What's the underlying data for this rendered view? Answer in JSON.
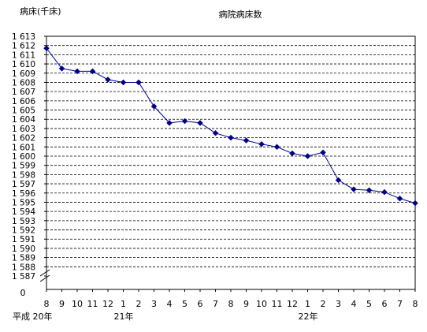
{
  "chart_data": {
    "type": "line",
    "title": "病院病床数",
    "ylabel": "病床(千床)",
    "xlabel": "",
    "ylim": [
      1587,
      1613
    ],
    "y_ticks": [
      "1 587",
      "1 588",
      "1 589",
      "1 590",
      "1 591",
      "1 592",
      "1 593",
      "1 594",
      "1 595",
      "1 596",
      "1 597",
      "1 598",
      "1 599",
      "1 600",
      "1 601",
      "1 602",
      "1 603",
      "1 604",
      "1 605",
      "1 606",
      "1 607",
      "1 608",
      "1 609",
      "1 610",
      "1 611",
      "1 612",
      "1 613"
    ],
    "y_zero_label": "0",
    "axis_break": true,
    "grid": true,
    "categories": [
      "8",
      "9",
      "10",
      "11",
      "12",
      "1",
      "2",
      "3",
      "4",
      "5",
      "6",
      "7",
      "8",
      "9",
      "10",
      "11",
      "12",
      "1",
      "2",
      "3",
      "4",
      "5",
      "6",
      "7",
      "8"
    ],
    "year_labels": [
      {
        "index": 0,
        "text": "平成 20年"
      },
      {
        "index": 5,
        "text": "21年"
      },
      {
        "index": 17,
        "text": "22年"
      }
    ],
    "series": [
      {
        "name": "",
        "color": "#00008B",
        "marker": "diamond",
        "values": [
          1611.7,
          1609.5,
          1609.2,
          1609.2,
          1608.3,
          1608.0,
          1608.0,
          1605.4,
          1603.6,
          1603.8,
          1603.6,
          1602.5,
          1602.0,
          1601.7,
          1601.3,
          1601.0,
          1600.3,
          1600.0,
          1600.4,
          1597.4,
          1596.4,
          1596.3,
          1596.1,
          1595.4,
          1594.9
        ]
      }
    ]
  }
}
